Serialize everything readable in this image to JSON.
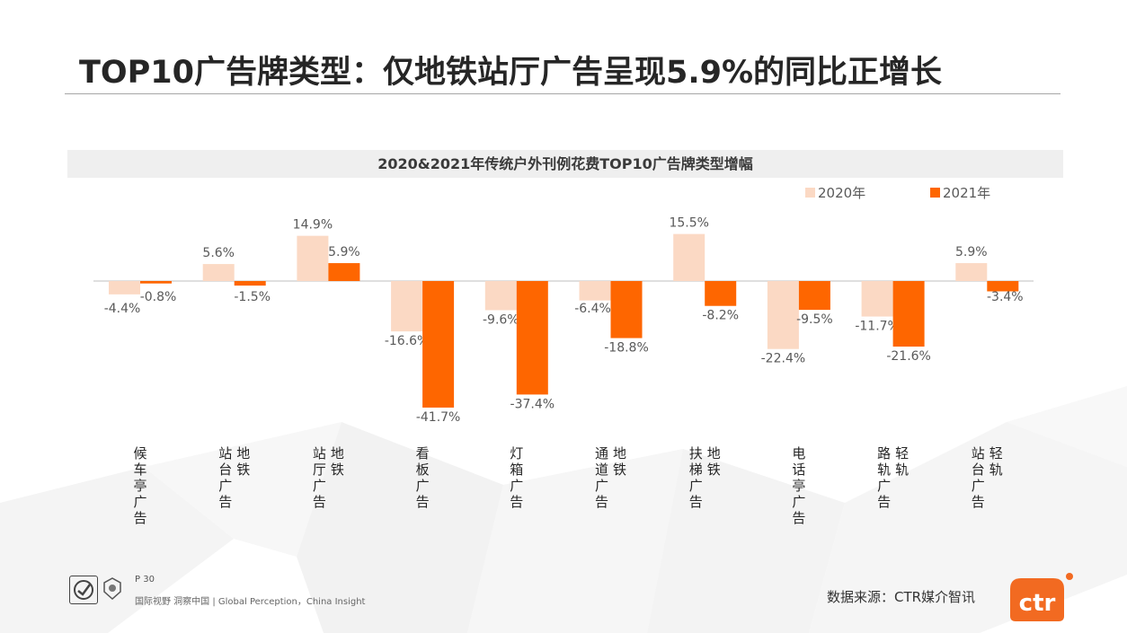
{
  "slide": {
    "title": "TOP10广告牌类型：仅地铁站厅广告呈现5.9%的同比正增长",
    "page_number": "P 30",
    "slogan": "国际视野 洞察中国 | Global Perception，China Insight",
    "source": "数据来源：CTR媒介智讯",
    "logo_text": "ctr"
  },
  "colors": {
    "series_2020": "#fbd9c4",
    "series_2021": "#fe6600",
    "accent": "#f26a21"
  },
  "chart_data": {
    "type": "bar",
    "title": "2020&2021年传统户外刊例花费TOP10广告牌类型增幅",
    "legend_position": "top-right",
    "grid": false,
    "categories": [
      "候车亭广告",
      "地铁站台广告",
      "地铁站厅广告",
      "看板广告",
      "灯箱广告",
      "地铁通道广告",
      "地铁扶梯广告",
      "电话亭广告",
      "轻轨路轨广告",
      "轻轨站台广告"
    ],
    "category_lines": [
      [
        "候车亭广告"
      ],
      [
        "站台广告",
        "地铁"
      ],
      [
        "站厅广告",
        "地铁"
      ],
      [
        "看板广告"
      ],
      [
        "灯箱广告"
      ],
      [
        "通道广告",
        "地铁"
      ],
      [
        "扶梯广告",
        "地铁"
      ],
      [
        "电话亭广告"
      ],
      [
        "路轨广告",
        "轻轨"
      ],
      [
        "站台广告",
        "轻轨"
      ]
    ],
    "series": [
      {
        "name": "2020年",
        "values": [
          -4.4,
          5.6,
          14.9,
          -16.6,
          -9.6,
          -6.4,
          15.5,
          -22.4,
          -11.7,
          5.9
        ],
        "labels": [
          "-4.4%",
          "5.6%",
          "14.9%",
          "-16.6%",
          "-9.6%",
          "-6.4%",
          "15.5%",
          "-22.4%",
          "-11.7%",
          "5.9%"
        ]
      },
      {
        "name": "2021年",
        "values": [
          -0.8,
          -1.5,
          5.9,
          -41.7,
          -37.4,
          -18.8,
          -8.2,
          -9.5,
          -21.6,
          -3.4
        ],
        "labels": [
          "-0.8%",
          "-1.5%",
          "5.9%",
          "-41.7%",
          "-37.4%",
          "-18.8%",
          "-8.2%",
          "-9.5%",
          "-21.6%",
          "-3.4%"
        ]
      }
    ]
  }
}
